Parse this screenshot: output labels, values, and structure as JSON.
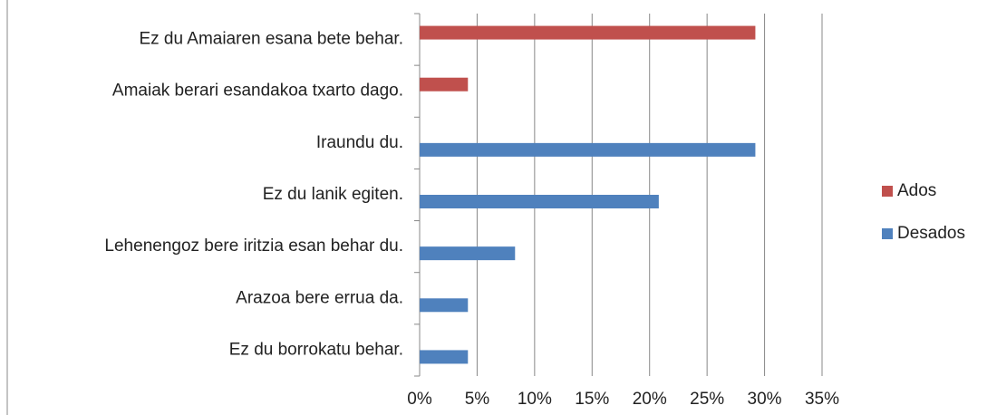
{
  "chart_data": {
    "type": "bar",
    "orientation": "horizontal",
    "categories": [
      "Ez du Amaiaren esana bete behar.",
      "Amaiak berari esandakoa txarto dago.",
      "Iraundu du.",
      "Ez du lanik egiten.",
      "Lehenengoz bere iritzia esan behar du.",
      "Arazoa bere errua da.",
      "Ez du borrokatu behar."
    ],
    "series": [
      {
        "name": "Ados",
        "color": "#c0504d",
        "values": [
          29.2,
          4.2,
          null,
          null,
          null,
          null,
          null
        ]
      },
      {
        "name": "Desados",
        "color": "#4f81bd",
        "values": [
          null,
          null,
          29.2,
          20.8,
          8.3,
          4.2,
          4.2
        ]
      }
    ],
    "xlim": [
      0,
      35
    ],
    "xticks": [
      {
        "value": 0,
        "label": "0%"
      },
      {
        "value": 5,
        "label": "5%"
      },
      {
        "value": 10,
        "label": "10%"
      },
      {
        "value": 15,
        "label": "15%"
      },
      {
        "value": 20,
        "label": "20%"
      },
      {
        "value": 25,
        "label": "25%"
      },
      {
        "value": 30,
        "label": "30%"
      },
      {
        "value": 35,
        "label": "35%"
      }
    ],
    "grid": true,
    "legend": "right"
  }
}
